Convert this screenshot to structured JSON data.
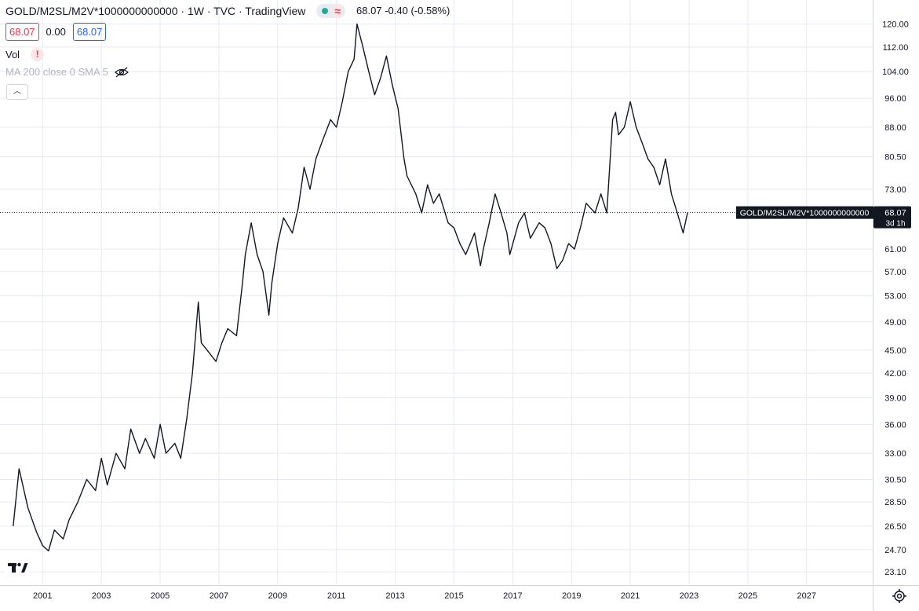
{
  "legend": {
    "title": "GOLD/M2SL/M2V*1000000000000 · 1W · TVC · TradingView",
    "last": "68.07",
    "change": "-0.40",
    "change_pct": "(-0.58%)",
    "bid": "68.07",
    "spread": "0.00",
    "ask": "68.07",
    "vol_label": "Vol",
    "vol_warning": "!",
    "ma_label": "MA 200 close 0 SMA 5"
  },
  "price_tag": {
    "symbol": "GOLD/M2SL/M2V*1000000000000",
    "price": "68.07",
    "countdown": "3d 1h"
  },
  "colors": {
    "line": "#131722",
    "grid": "#e6e9ef",
    "red": "#f23645",
    "blue": "#2962ff",
    "tag_bg": "#131722"
  },
  "icons": [
    "status-dot-icon",
    "wave-icon",
    "warning-icon",
    "eye-hidden-icon",
    "chevron-up-icon",
    "tradingview-logo-icon",
    "gear-icon"
  ],
  "chart_data": {
    "type": "line",
    "y_scale": "log",
    "grid": true,
    "ylim": [
      22.2,
      129
    ],
    "xlim": [
      1999.55,
      2029.25
    ],
    "y_ticks": [
      "120.00",
      "112.00",
      "104.00",
      "96.00",
      "88.00",
      "80.50",
      "73.00",
      "61.00",
      "57.00",
      "53.00",
      "49.00",
      "45.00",
      "42.00",
      "39.00",
      "36.00",
      "33.00",
      "30.50",
      "28.50",
      "26.50",
      "24.70",
      "23.10"
    ],
    "x_ticks": [
      "2001",
      "2003",
      "2005",
      "2007",
      "2009",
      "2011",
      "2013",
      "2015",
      "2017",
      "2019",
      "2021",
      "2023",
      "2025",
      "2027"
    ],
    "last_value": 68.07,
    "series": [
      {
        "x": [
          2000.0,
          2000.2,
          2000.5,
          2000.8,
          2001.0,
          2001.2,
          2001.4,
          2001.7,
          2001.9,
          2002.2,
          2002.5,
          2002.8,
          2003.0,
          2003.2,
          2003.5,
          2003.8,
          2004.0,
          2004.3,
          2004.5,
          2004.8,
          2005.0,
          2005.2,
          2005.5,
          2005.7,
          2005.9,
          2006.1,
          2006.3,
          2006.4,
          2006.6,
          2006.9,
          2007.1,
          2007.3,
          2007.6,
          2007.8,
          2007.9,
          2008.1,
          2008.3,
          2008.5,
          2008.7,
          2008.8,
          2009.0,
          2009.2,
          2009.5,
          2009.7,
          2009.9,
          2010.1,
          2010.3,
          2010.5,
          2010.8,
          2011.0,
          2011.2,
          2011.4,
          2011.6,
          2011.7,
          2011.9,
          2012.1,
          2012.3,
          2012.5,
          2012.7,
          2012.9,
          2013.1,
          2013.3,
          2013.4,
          2013.7,
          2013.9,
          2014.1,
          2014.3,
          2014.5,
          2014.8,
          2015.0,
          2015.2,
          2015.4,
          2015.7,
          2015.9,
          2016.0,
          2016.2,
          2016.4,
          2016.6,
          2016.8,
          2016.9,
          2017.2,
          2017.4,
          2017.6,
          2017.9,
          2018.1,
          2018.3,
          2018.5,
          2018.7,
          2018.9,
          2019.1,
          2019.3,
          2019.5,
          2019.8,
          2020.0,
          2020.2,
          2020.4,
          2020.5,
          2020.6,
          2020.8,
          2021.0,
          2021.2,
          2021.4,
          2021.6,
          2021.8,
          2022.0,
          2022.2,
          2022.4,
          2022.6,
          2022.8,
          2022.95
        ],
        "y": [
          26.5,
          31.5,
          28.0,
          26.0,
          25.0,
          24.6,
          26.2,
          25.5,
          27.0,
          28.5,
          30.5,
          29.5,
          32.5,
          30.0,
          33.0,
          31.5,
          35.5,
          33.0,
          34.5,
          32.5,
          36.0,
          33.0,
          34.0,
          32.5,
          36.5,
          42.0,
          52.0,
          46.0,
          45.0,
          43.5,
          46.0,
          48.0,
          47.0,
          55.0,
          60.0,
          66.0,
          60.0,
          57.0,
          50.0,
          55.0,
          62.0,
          67.0,
          64.0,
          69.0,
          78.0,
          73.0,
          80.0,
          84.0,
          90.0,
          88.0,
          95.0,
          104.0,
          108.0,
          120.0,
          112.0,
          104.0,
          97.0,
          102.0,
          109.0,
          100.0,
          93.0,
          80.0,
          76.0,
          72.0,
          68.0,
          74.0,
          70.0,
          72.0,
          66.0,
          65.0,
          62.0,
          60.0,
          64.0,
          58.0,
          61.0,
          66.0,
          72.0,
          68.0,
          64.0,
          60.0,
          66.0,
          68.0,
          63.0,
          66.0,
          65.0,
          62.0,
          57.5,
          59.0,
          62.0,
          61.0,
          65.0,
          70.0,
          68.0,
          72.0,
          68.0,
          90.0,
          92.0,
          86.0,
          88.0,
          95.0,
          88.0,
          84.0,
          80.0,
          78.0,
          74.0,
          80.0,
          72.0,
          68.0,
          64.0,
          68.07
        ]
      }
    ]
  }
}
